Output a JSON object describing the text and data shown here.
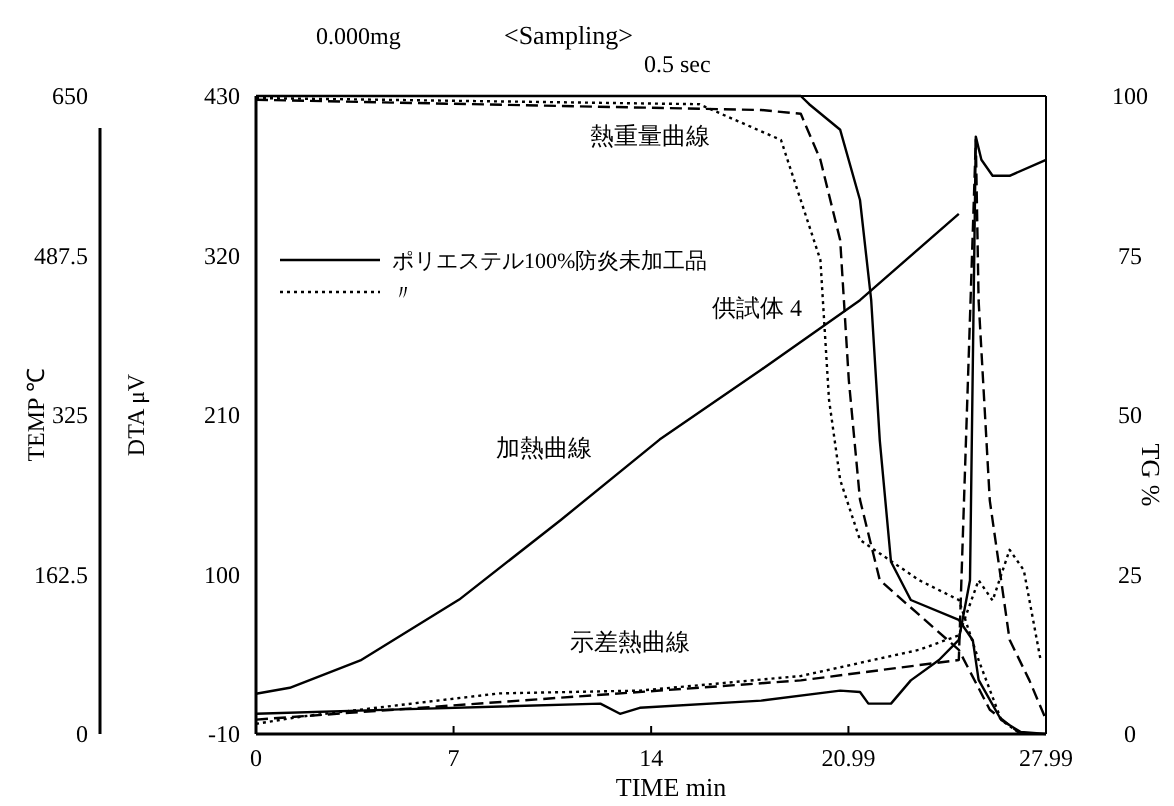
{
  "chart_data": {
    "type": "line",
    "xlabel": "TIME min",
    "ylabel": "DTA μV",
    "y2label": "TG %",
    "y3label": "TEMP ℃",
    "xlim": [
      0,
      27.99
    ],
    "xticks": [
      0,
      7,
      14,
      20.99,
      27.99
    ],
    "ylim": [
      -10,
      430
    ],
    "yticks": [
      -10,
      100,
      210,
      320,
      430
    ],
    "y2lim": [
      0,
      100
    ],
    "y2ticks": [
      0,
      25,
      50,
      75,
      100
    ],
    "y3lim": [
      0,
      650
    ],
    "y3ticks": [
      0,
      162.5,
      325,
      487.5,
      650
    ],
    "legend": "left",
    "grid": false,
    "annotations": [
      "0.000mg",
      "<Sampling>",
      "0.5 sec",
      "熱重量曲線",
      "加熱曲線",
      "示差熱曲線",
      "供試体 4"
    ],
    "series": [
      {
        "axis": "y3",
        "color": "#000000",
        "line_style": "solid",
        "x": [
          0,
          1.2,
          3.7,
          7.2,
          10.8,
          14.3,
          17.9,
          21.4,
          24.9
        ],
        "values": [
          41,
          47,
          75,
          137,
          218,
          300,
          371,
          442,
          530
        ]
      },
      {
        "name": "ポリエステル100%防炎未加工品",
        "axis": "y2",
        "color": "#000000",
        "line_style": "solid",
        "x": [
          0,
          19.3,
          19.6,
          20.7,
          21.4,
          21.8,
          22.1,
          22.5,
          23.2,
          24.9,
          25.4,
          25.6,
          26.4,
          27.1,
          27.99
        ],
        "values": [
          100,
          100,
          98.7,
          94.7,
          83.7,
          68,
          46,
          27,
          21,
          17.9,
          14.7,
          8.5,
          2.2,
          0.3,
          0
        ]
      },
      {
        "name": "〃",
        "axis": "y2",
        "color": "#000000",
        "line_style": "dotted",
        "x": [
          0,
          15.7,
          18.6,
          20,
          20.3,
          20.7,
          21.4,
          23.5,
          24.9,
          25.6,
          26.4,
          27.1
        ],
        "values": [
          99.7,
          98.7,
          93.1,
          74.3,
          52.4,
          39.8,
          30.4,
          24.1,
          21,
          11.6,
          2.2,
          0
        ]
      },
      {
        "axis": "y2",
        "color": "#000000",
        "line_style": "dashed",
        "x": [
          0,
          17.9,
          19.3,
          20,
          20.7,
          21,
          21.4,
          22.1,
          24.9,
          26,
          27.1
        ],
        "values": [
          99.4,
          97.8,
          97.2,
          90,
          77.4,
          55.5,
          36.7,
          24.1,
          13.2,
          3.8,
          0
        ]
      },
      {
        "axis": "y",
        "color": "#000000",
        "line_style": "solid",
        "x": [
          0,
          5.1,
          12.2,
          12.9,
          13.6,
          17.9,
          20.7,
          21.4,
          21.7,
          22.5,
          23.2,
          24.2,
          24.9,
          25.3,
          25.5,
          25.7,
          26.1,
          26.7,
          27.99
        ],
        "values": [
          4,
          7,
          11,
          4,
          8,
          13,
          20,
          19,
          11,
          11,
          27,
          41,
          55,
          96,
          402,
          386,
          375,
          375,
          386
        ]
      },
      {
        "axis": "y",
        "color": "#000000",
        "line_style": "dotted",
        "x": [
          0,
          1.6,
          8.6,
          13.6,
          19.3,
          23.5,
          24.9,
          25.6,
          26.1,
          26.7,
          27.2,
          27.8
        ],
        "values": [
          -3,
          2,
          18,
          20,
          30,
          48,
          58,
          96,
          82,
          117,
          103,
          41
        ]
      },
      {
        "axis": "y",
        "color": "#000000",
        "line_style": "dashed",
        "x": [
          0,
          19.3,
          24.9,
          25.5,
          25.6,
          26,
          26.7,
          27.4,
          27.99
        ],
        "values": [
          0,
          27,
          41,
          400,
          289,
          151,
          55,
          27,
          0
        ]
      }
    ]
  }
}
